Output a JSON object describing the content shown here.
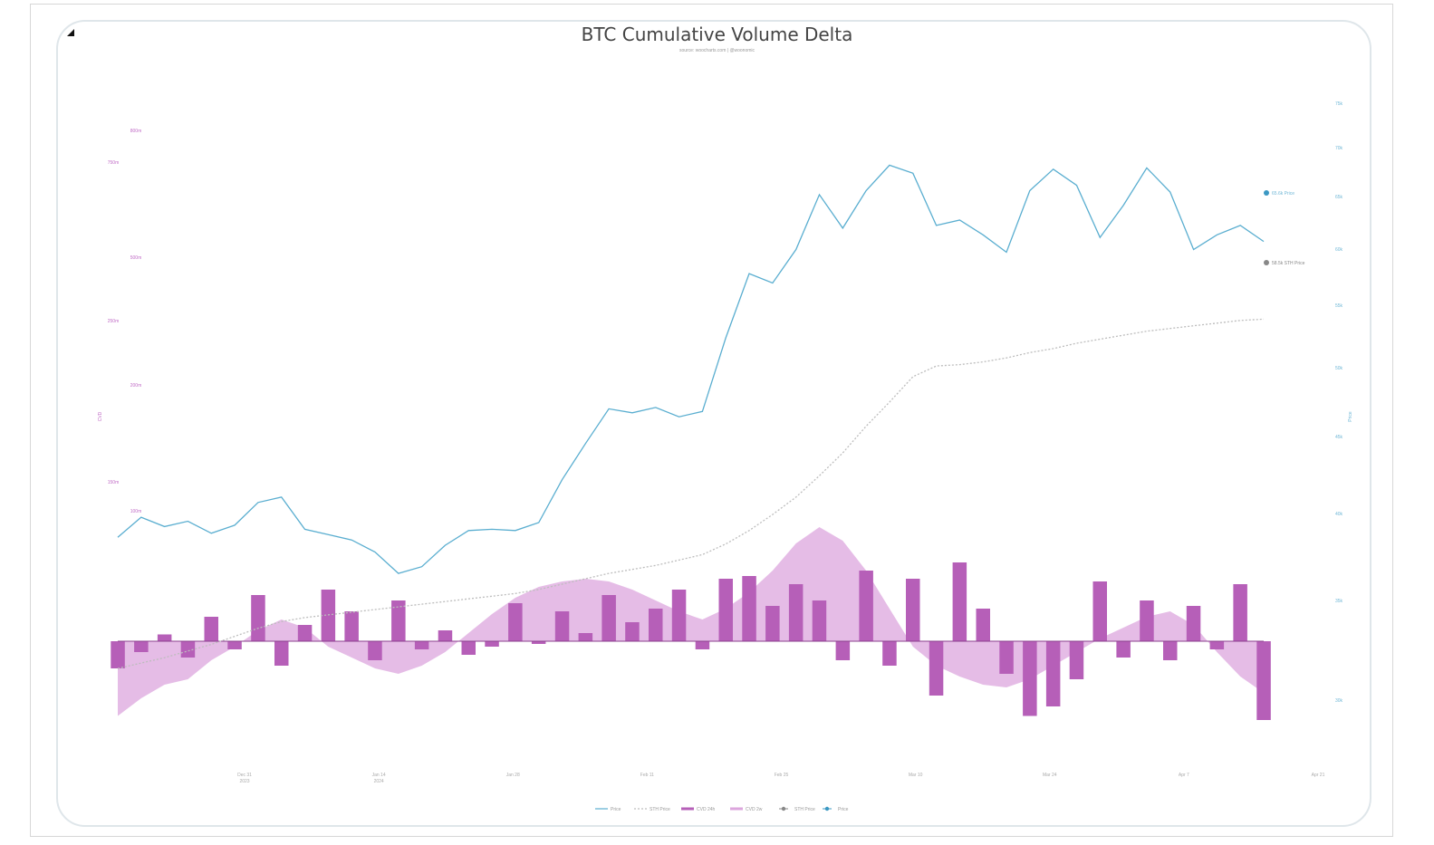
{
  "chart_data": {
    "type": "line",
    "title": "BTC Cumulative Volume Delta",
    "subtitle": "source: woocharts.com | @woonomic",
    "xlabel": "",
    "ylabel_left": "CVD",
    "ylabel_right": "Price",
    "x_ticks": [
      "Dec 31\n2023",
      "Jan 14\n2024",
      "Jan 28",
      "Feb 11",
      "Feb 25",
      "Mar 10",
      "Mar 24",
      "Apr 7",
      "Apr 21"
    ],
    "left_ticks": [
      "800m",
      "750m",
      "500m",
      "250m",
      "200m",
      "150m",
      "100m"
    ],
    "right_ticks": [
      "75k",
      "70k",
      "65k",
      "60k",
      "55k",
      "50k",
      "45k",
      "40k",
      "35k",
      "30k"
    ],
    "series": [
      {
        "name": "Price",
        "color": "#5aaed0",
        "values": [
          42.3,
          43.8,
          43.1,
          43.5,
          42.6,
          43.2,
          44.9,
          45.3,
          42.9,
          42.5,
          42.1,
          41.2,
          39.6,
          40.1,
          41.7,
          42.8,
          42.9,
          42.8,
          43.4,
          46.6,
          49.3,
          51.9,
          51.6,
          52.0,
          51.3,
          51.7,
          57.2,
          62.0,
          61.3,
          63.8,
          67.9,
          65.4,
          68.2,
          70.1,
          69.5,
          65.6,
          66.0,
          64.9,
          63.6,
          68.2,
          69.8,
          68.6,
          64.7,
          67.1,
          69.9,
          68.1,
          63.8,
          64.9,
          65.6,
          64.4
        ]
      },
      {
        "name": "STH Price",
        "color": "#bdbdbd",
        "values": [
          32.5,
          32.9,
          33.3,
          33.8,
          34.3,
          34.9,
          35.5,
          36.0,
          36.3,
          36.5,
          36.7,
          36.9,
          37.1,
          37.3,
          37.5,
          37.7,
          37.9,
          38.1,
          38.4,
          38.8,
          39.2,
          39.6,
          39.9,
          40.2,
          40.6,
          41.0,
          41.8,
          42.8,
          44.0,
          45.3,
          46.9,
          48.6,
          50.6,
          52.4,
          54.3,
          55.1,
          55.2,
          55.4,
          55.7,
          56.1,
          56.4,
          56.8,
          57.1,
          57.4,
          57.7,
          57.9,
          58.1,
          58.3,
          58.5,
          58.6
        ]
      },
      {
        "name": "CVD 24h",
        "color": "#b65fb8",
        "values": [
          -20,
          -8,
          5,
          -12,
          18,
          -6,
          34,
          -18,
          12,
          38,
          22,
          -14,
          30,
          -6,
          8,
          -10,
          -4,
          28,
          -2,
          22,
          6,
          34,
          14,
          24,
          38,
          -6,
          46,
          48,
          26,
          42,
          30,
          -14,
          52,
          -18,
          46,
          -40,
          58,
          24,
          -24,
          -55,
          -48,
          -28,
          44,
          -12,
          30,
          -14,
          26,
          -6,
          42,
          -58
        ]
      },
      {
        "name": "CVD 2w",
        "color": "#dca6dd",
        "values": [
          -55,
          -42,
          -32,
          -28,
          -14,
          -4,
          8,
          16,
          10,
          -4,
          -12,
          -20,
          -24,
          -18,
          -8,
          6,
          20,
          32,
          40,
          44,
          46,
          44,
          38,
          30,
          22,
          16,
          24,
          36,
          52,
          72,
          84,
          74,
          52,
          24,
          -4,
          -18,
          -26,
          -32,
          -34,
          -28,
          -18,
          -8,
          2,
          10,
          18,
          22,
          12,
          -8,
          -26,
          -38
        ]
      }
    ],
    "legend": [
      "Price",
      "STH Price",
      "CVD 24h",
      "CVD 2w",
      "STH Price",
      "Price"
    ],
    "legend_position": "bottom-center",
    "annotations": [
      "65.6k Price",
      "58.5k STH Price"
    ],
    "grid": false
  }
}
